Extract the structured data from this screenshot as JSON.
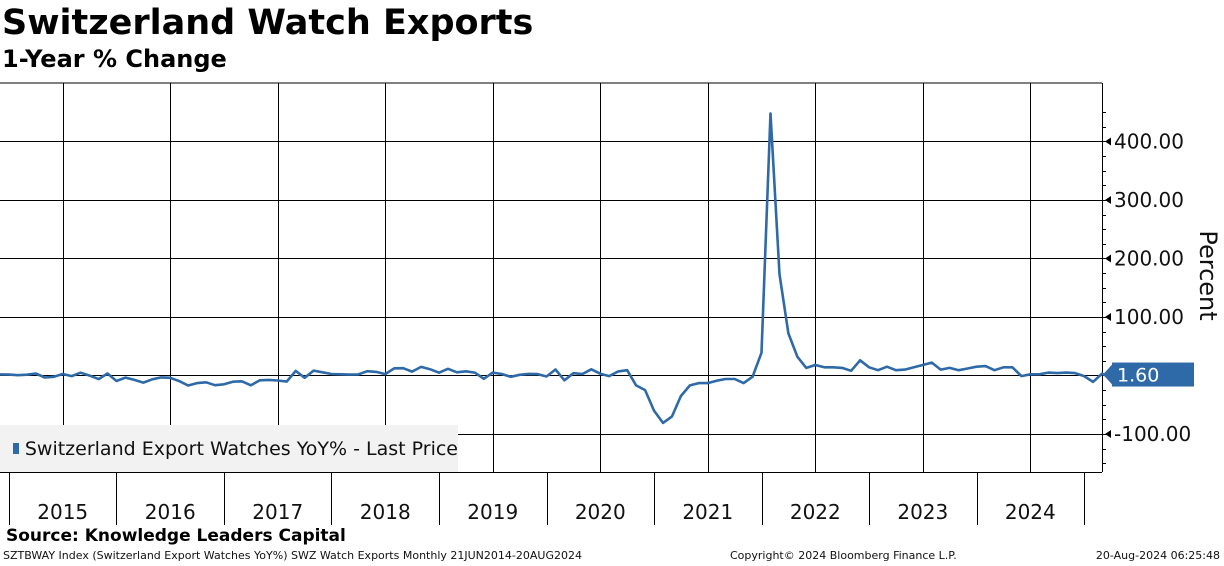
{
  "header": {
    "title": "Switzerland Watch Exports",
    "subtitle": "1-Year % Change"
  },
  "legend": {
    "label": "Switzerland Export Watches YoY% - Last Price",
    "color": "#2f6aa8"
  },
  "source": "Source: Knowledge Leaders Capital",
  "footer": {
    "left": "SZTBWAY Index (Switzerland Export Watches YoY%) SWZ Watch Exports  Monthly 21JUN2014-20AUG2024",
    "center": "Copyright© 2024 Bloomberg Finance L.P.",
    "right": "20-Aug-2024 06:25:48"
  },
  "chart_data": {
    "type": "line",
    "ylabel": "Percent",
    "ylim": [
      -165,
      500
    ],
    "yticks": [
      -100,
      100,
      200,
      300,
      400
    ],
    "ytick_labels": [
      "-100.00",
      "100.00",
      "200.00",
      "300.00",
      "400.00"
    ],
    "x_start": "2014-06",
    "xlim": [
      "2014-06",
      "2024-09"
    ],
    "year_labels": [
      "2015",
      "2016",
      "2017",
      "2018",
      "2019",
      "2020",
      "2021",
      "2022",
      "2023",
      "2024"
    ],
    "last_value": 1.6,
    "last_value_label": "1.60",
    "line_color": "#2f6aa8",
    "grid": true,
    "legend_position": "bottom-left",
    "series": [
      {
        "values": [
          1.9,
          1.5,
          0.5,
          1.3,
          3.4,
          -3.4,
          -2.3,
          2.6,
          -1.1,
          4.8,
          -0.2,
          -6.2,
          3.4,
          -9.4,
          -3.6,
          -7.6,
          -12.2,
          -6.6,
          -3.3,
          -4.0,
          -9.6,
          -17.2,
          -13.0,
          -11.6,
          -16.6,
          -15.1,
          -10.6,
          -9.9,
          -16.8,
          -8.2,
          -7.5,
          -8.5,
          -10.5,
          7.8,
          -4.0,
          8.4,
          5.5,
          2.5,
          2.1,
          1.5,
          1.8,
          7.3,
          6.1,
          2.4,
          12.3,
          12.4,
          6.7,
          14.7,
          10.8,
          4.8,
          11.4,
          5.5,
          7.1,
          4.9,
          -5.6,
          4.9,
          2.5,
          -2.3,
          1.2,
          2.7,
          2.3,
          -1.8,
          10.3,
          -8.2,
          3.9,
          2.6,
          10.5,
          3.0,
          -1.1,
          7.0,
          9.0,
          -17.0,
          -25.0,
          -60.0,
          -81.0,
          -70.0,
          -35.0,
          -17.0,
          -13.0,
          -13.0,
          -9.0,
          -6.0,
          -6.0,
          -13.0,
          -2.0,
          39.0,
          448.0,
          173.0,
          72.0,
          32.0,
          13.0,
          18.0,
          14.0,
          14.0,
          13.0,
          8.0,
          26.0,
          14.0,
          9.0,
          15.0,
          9.0,
          10.0,
          14.0,
          18.0,
          22.0,
          10.0,
          13.0,
          9.0,
          12.0,
          15.0,
          16.0,
          9.0,
          14.0,
          14.0,
          -1.0,
          2.0,
          2.0,
          5.0,
          4.0,
          5.0,
          4.0,
          -1.0,
          -11.0,
          3.0,
          -4.0,
          -7.0,
          1.6
        ]
      }
    ]
  }
}
